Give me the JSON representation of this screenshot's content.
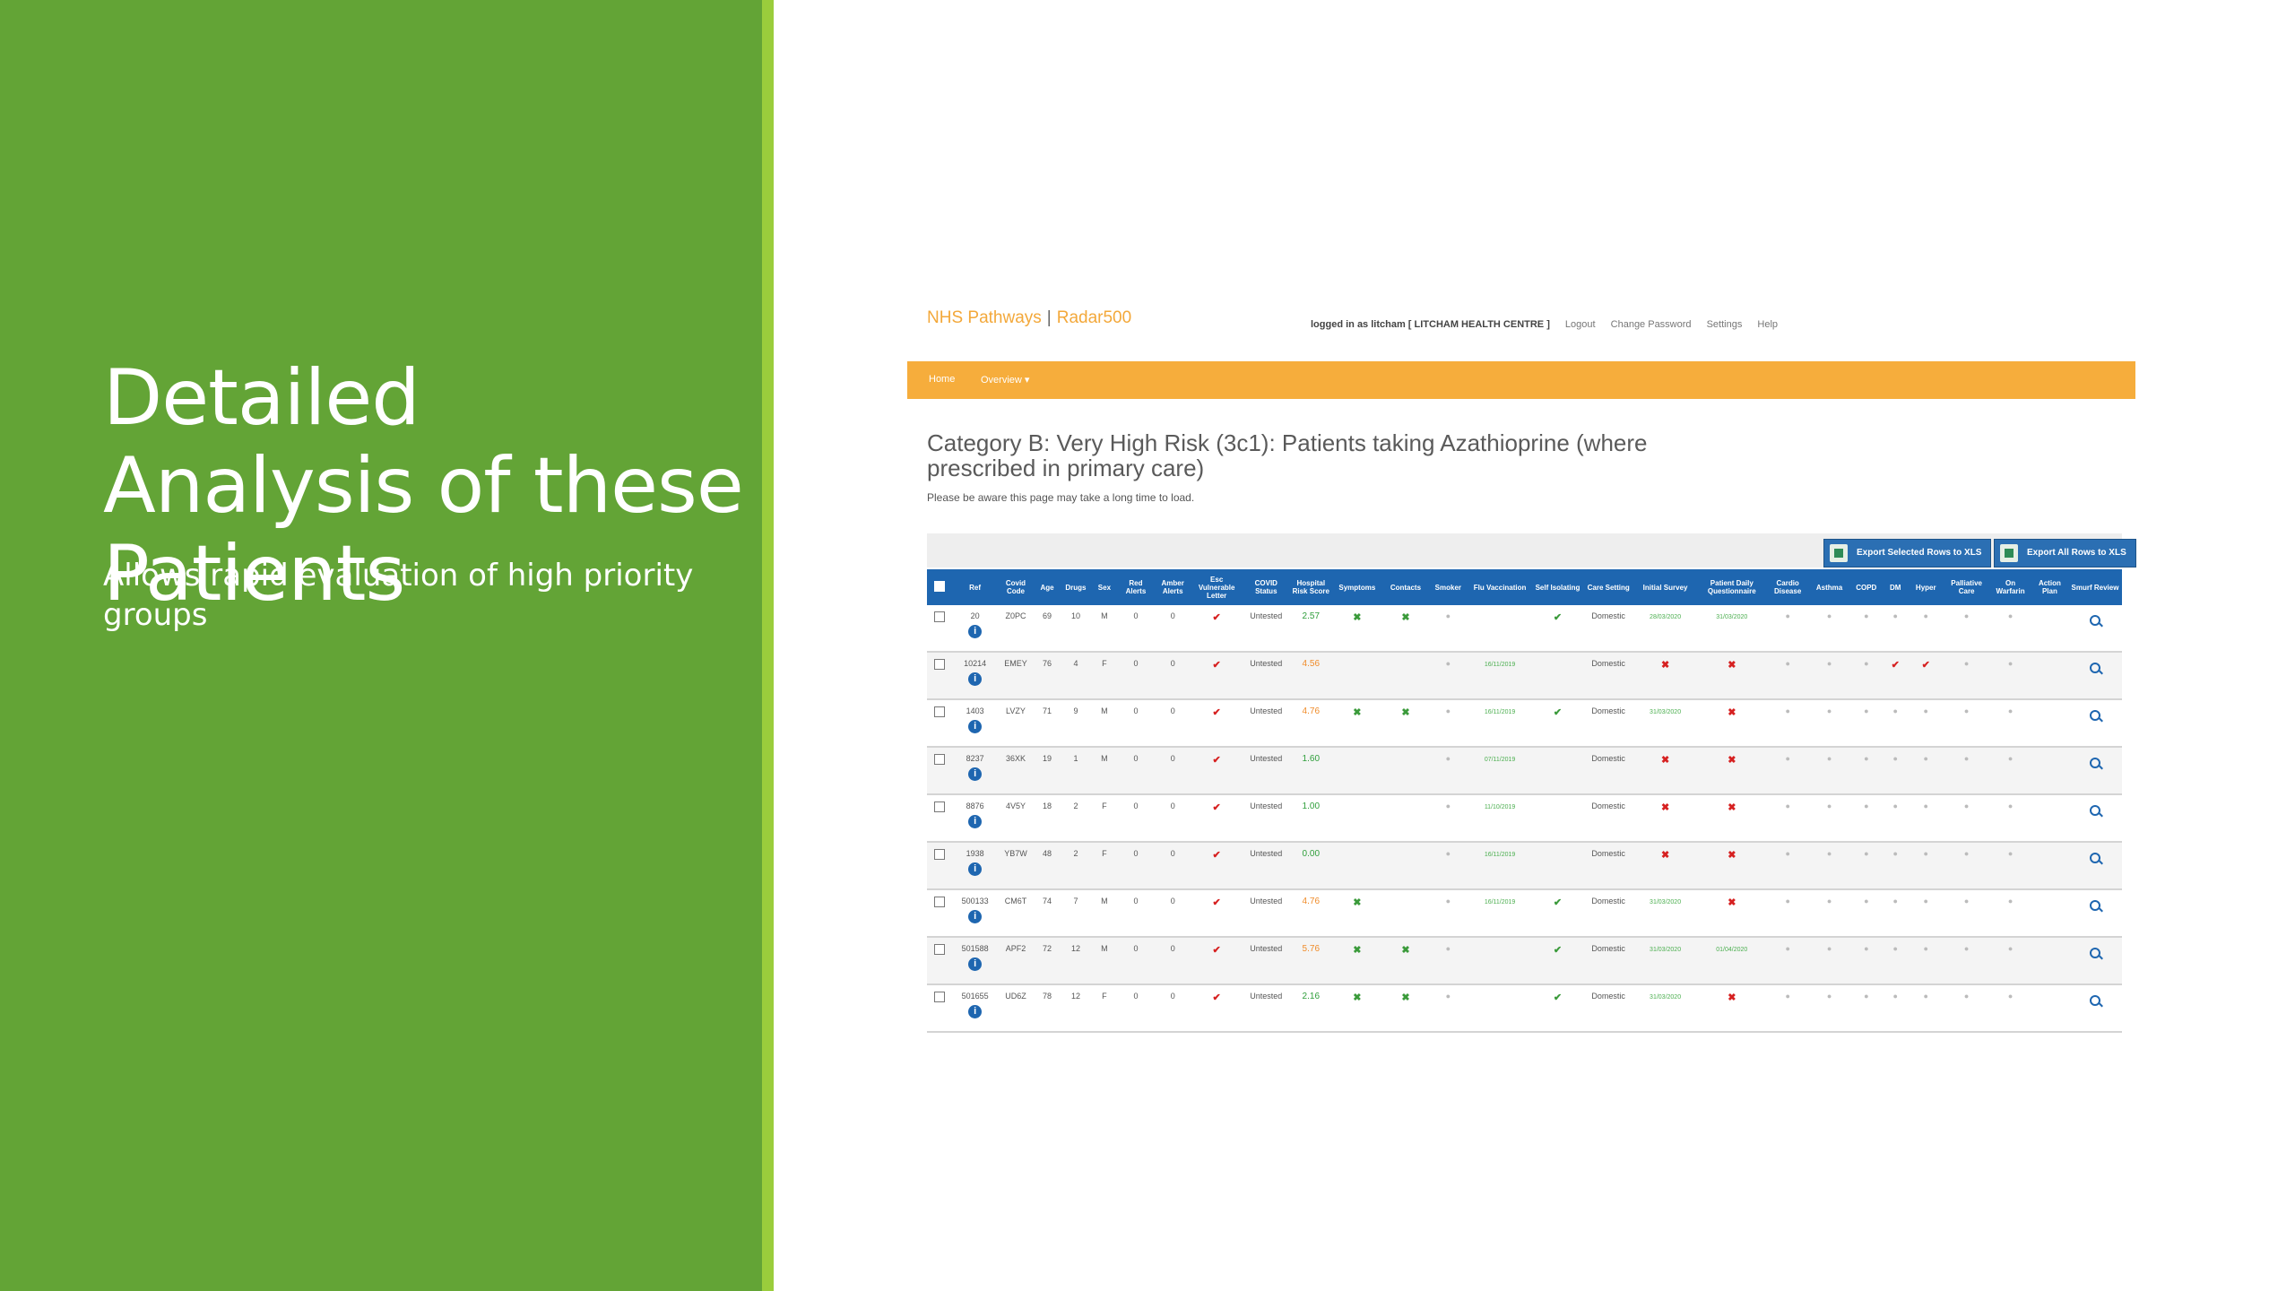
{
  "slide": {
    "title": "Detailed Analysis of these Patients",
    "subtitle": "Allows rapid evaluation of high priority groups",
    "colors": {
      "panel": "#63a436",
      "stripe": "#9acd3c"
    }
  },
  "app": {
    "brand_left": "NHS Pathways",
    "brand_sep": "|",
    "brand_right": "Radar500",
    "user_text": "logged in as litcham [ LITCHAM HEALTH CENTRE ]",
    "links": [
      "Logout",
      "Change Password",
      "Settings",
      "Help"
    ],
    "nav": {
      "home": "Home",
      "overview": "Overview ▾"
    },
    "page_title": "Category B: Very High Risk (3c1): Patients taking Azathioprine (where prescribed in primary care)",
    "page_note": "Please be aware this page may take a long time to load.",
    "export_selected": "Export Selected Rows to XLS",
    "export_all": "Export All Rows to XLS",
    "colors": {
      "nav": "#f6ad3c",
      "header": "#1e66b0",
      "brand": "#f3a83a"
    }
  },
  "table": {
    "columns": [
      "",
      "Ref",
      "Covid Code",
      "Age",
      "Drugs",
      "Sex",
      "Red Alerts",
      "Amber Alerts",
      "Esc Vulnerable Letter",
      "COVID Status",
      "Hospital Risk Score",
      "Symptoms",
      "Contacts",
      "Smoker",
      "Flu Vaccination",
      "Self Isolating",
      "Care Setting",
      "Initial Survey",
      "Patient Daily Questionnaire",
      "Cardio Disease",
      "Asthma",
      "COPD",
      "DM",
      "Hyper",
      "Palliative Care",
      "On Warfarin",
      "Action Plan",
      "Smurf Review"
    ],
    "rows": [
      {
        "ref": "20",
        "code": "Z0PC",
        "age": "69",
        "drugs": "10",
        "sex": "M",
        "red": "0",
        "amber": "0",
        "status": "Untested",
        "score": "2.57",
        "score_color": "green",
        "symptoms": "x",
        "contacts": "x",
        "smoker": "dot",
        "flu": "",
        "self": "tick",
        "care": "Domestic",
        "survey": "28/03/2020",
        "survey_kind": "date",
        "pdq": "31/03/2020",
        "pdq_kind": "date",
        "dm": "dot",
        "hyper": "dot"
      },
      {
        "ref": "10214",
        "code": "EMEY",
        "age": "76",
        "drugs": "4",
        "sex": "F",
        "red": "0",
        "amber": "0",
        "status": "Untested",
        "score": "4.56",
        "score_color": "orange",
        "symptoms": "",
        "contacts": "",
        "smoker": "dot",
        "flu": "16/11/2019",
        "self": "",
        "care": "Domestic",
        "survey": "x",
        "survey_kind": "cross",
        "pdq": "x",
        "pdq_kind": "cross",
        "dm": "tick",
        "hyper": "tick"
      },
      {
        "ref": "1403",
        "code": "LVZY",
        "age": "71",
        "drugs": "9",
        "sex": "M",
        "red": "0",
        "amber": "0",
        "status": "Untested",
        "score": "4.76",
        "score_color": "orange",
        "symptoms": "x",
        "contacts": "x",
        "smoker": "dot",
        "flu": "16/11/2019",
        "self": "tick",
        "care": "Domestic",
        "survey": "31/03/2020",
        "survey_kind": "date",
        "pdq": "x",
        "pdq_kind": "cross",
        "dm": "dot",
        "hyper": "dot"
      },
      {
        "ref": "8237",
        "code": "36XK",
        "age": "19",
        "drugs": "1",
        "sex": "M",
        "red": "0",
        "amber": "0",
        "status": "Untested",
        "score": "1.60",
        "score_color": "green",
        "symptoms": "",
        "contacts": "",
        "smoker": "dot",
        "flu": "07/11/2019",
        "self": "",
        "care": "Domestic",
        "survey": "x",
        "survey_kind": "cross",
        "pdq": "x",
        "pdq_kind": "cross",
        "dm": "dot",
        "hyper": "dot"
      },
      {
        "ref": "8876",
        "code": "4V5Y",
        "age": "18",
        "drugs": "2",
        "sex": "F",
        "red": "0",
        "amber": "0",
        "status": "Untested",
        "score": "1.00",
        "score_color": "green",
        "symptoms": "",
        "contacts": "",
        "smoker": "dot",
        "flu": "11/10/2019",
        "self": "",
        "care": "Domestic",
        "survey": "x",
        "survey_kind": "cross",
        "pdq": "x",
        "pdq_kind": "cross",
        "dm": "dot",
        "hyper": "dot"
      },
      {
        "ref": "1938",
        "code": "YB7W",
        "age": "48",
        "drugs": "2",
        "sex": "F",
        "red": "0",
        "amber": "0",
        "status": "Untested",
        "score": "0.00",
        "score_color": "green",
        "symptoms": "",
        "contacts": "",
        "smoker": "dot",
        "flu": "16/11/2019",
        "self": "",
        "care": "Domestic",
        "survey": "x",
        "survey_kind": "cross",
        "pdq": "x",
        "pdq_kind": "cross",
        "dm": "dot",
        "hyper": "dot"
      },
      {
        "ref": "500133",
        "code": "CM6T",
        "age": "74",
        "drugs": "7",
        "sex": "M",
        "red": "0",
        "amber": "0",
        "status": "Untested",
        "score": "4.76",
        "score_color": "orange",
        "symptoms": "x",
        "contacts": "",
        "smoker": "dot",
        "flu": "16/11/2019",
        "self": "tick",
        "care": "Domestic",
        "survey": "31/03/2020",
        "survey_kind": "date",
        "pdq": "x",
        "pdq_kind": "cross",
        "dm": "dot",
        "hyper": "dot"
      },
      {
        "ref": "501588",
        "code": "APF2",
        "age": "72",
        "drugs": "12",
        "sex": "M",
        "red": "0",
        "amber": "0",
        "status": "Untested",
        "score": "5.76",
        "score_color": "orange",
        "symptoms": "x",
        "contacts": "x",
        "smoker": "dot",
        "flu": "",
        "self": "tick",
        "care": "Domestic",
        "survey": "31/03/2020",
        "survey_kind": "date",
        "pdq": "01/04/2020",
        "pdq_kind": "date",
        "dm": "dot",
        "hyper": "dot"
      },
      {
        "ref": "501655",
        "code": "UD6Z",
        "age": "78",
        "drugs": "12",
        "sex": "F",
        "red": "0",
        "amber": "0",
        "status": "Untested",
        "score": "2.16",
        "score_color": "green",
        "symptoms": "x",
        "contacts": "x",
        "smoker": "dot",
        "flu": "",
        "self": "tick",
        "care": "Domestic",
        "survey": "31/03/2020",
        "survey_kind": "date",
        "pdq": "x",
        "pdq_kind": "cross",
        "dm": "dot",
        "hyper": "dot"
      }
    ]
  }
}
